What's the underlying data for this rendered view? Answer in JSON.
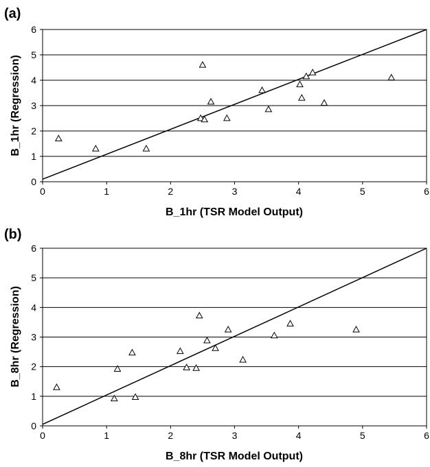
{
  "chart_data": [
    {
      "type": "scatter",
      "panel_label": "(a)",
      "title": "",
      "xlabel": "B_1hr (TSR Model Output)",
      "ylabel": "B_1hr (Regression)",
      "xlim": [
        0,
        6
      ],
      "ylim": [
        0,
        6
      ],
      "xticks": [
        "0",
        "1",
        "2",
        "3",
        "4",
        "5",
        "6"
      ],
      "yticks": [
        "0",
        "1",
        "2",
        "3",
        "4",
        "5",
        "6"
      ],
      "grid": "horizontal",
      "legend": "none",
      "marker": "open-triangle",
      "color": "#000000",
      "points": [
        {
          "x": 0.25,
          "y": 1.7
        },
        {
          "x": 0.83,
          "y": 1.3
        },
        {
          "x": 1.62,
          "y": 1.3
        },
        {
          "x": 2.47,
          "y": 2.5
        },
        {
          "x": 2.5,
          "y": 4.6
        },
        {
          "x": 2.53,
          "y": 2.45
        },
        {
          "x": 2.63,
          "y": 3.15
        },
        {
          "x": 2.88,
          "y": 2.5
        },
        {
          "x": 3.43,
          "y": 3.6
        },
        {
          "x": 3.53,
          "y": 2.85
        },
        {
          "x": 4.02,
          "y": 3.83
        },
        {
          "x": 4.05,
          "y": 3.3
        },
        {
          "x": 4.12,
          "y": 4.15
        },
        {
          "x": 4.22,
          "y": 4.3
        },
        {
          "x": 4.4,
          "y": 3.1
        },
        {
          "x": 5.45,
          "y": 4.1
        }
      ],
      "reference_line": {
        "x": [
          0,
          6
        ],
        "y": [
          0.1,
          6
        ]
      }
    },
    {
      "type": "scatter",
      "panel_label": "(b)",
      "title": "",
      "xlabel": "B_8hr (TSR Model Output)",
      "ylabel": "B_8hr (Regression)",
      "xlim": [
        0,
        6
      ],
      "ylim": [
        0,
        6
      ],
      "xticks": [
        "0",
        "1",
        "2",
        "3",
        "4",
        "5",
        "6"
      ],
      "yticks": [
        "0",
        "1",
        "2",
        "3",
        "4",
        "5",
        "6"
      ],
      "grid": "horizontal",
      "legend": "none",
      "marker": "open-triangle",
      "color": "#000000",
      "points": [
        {
          "x": 0.22,
          "y": 1.3
        },
        {
          "x": 1.12,
          "y": 0.92
        },
        {
          "x": 1.17,
          "y": 1.92
        },
        {
          "x": 1.4,
          "y": 2.47
        },
        {
          "x": 1.45,
          "y": 0.97
        },
        {
          "x": 2.15,
          "y": 2.52
        },
        {
          "x": 2.25,
          "y": 1.97
        },
        {
          "x": 2.4,
          "y": 1.95
        },
        {
          "x": 2.45,
          "y": 3.72
        },
        {
          "x": 2.57,
          "y": 2.88
        },
        {
          "x": 2.7,
          "y": 2.62
        },
        {
          "x": 2.9,
          "y": 3.25
        },
        {
          "x": 3.13,
          "y": 2.23
        },
        {
          "x": 3.62,
          "y": 3.05
        },
        {
          "x": 3.87,
          "y": 3.45
        },
        {
          "x": 4.9,
          "y": 3.25
        }
      ],
      "reference_line": {
        "x": [
          0,
          6
        ],
        "y": [
          0.05,
          6
        ]
      }
    }
  ]
}
